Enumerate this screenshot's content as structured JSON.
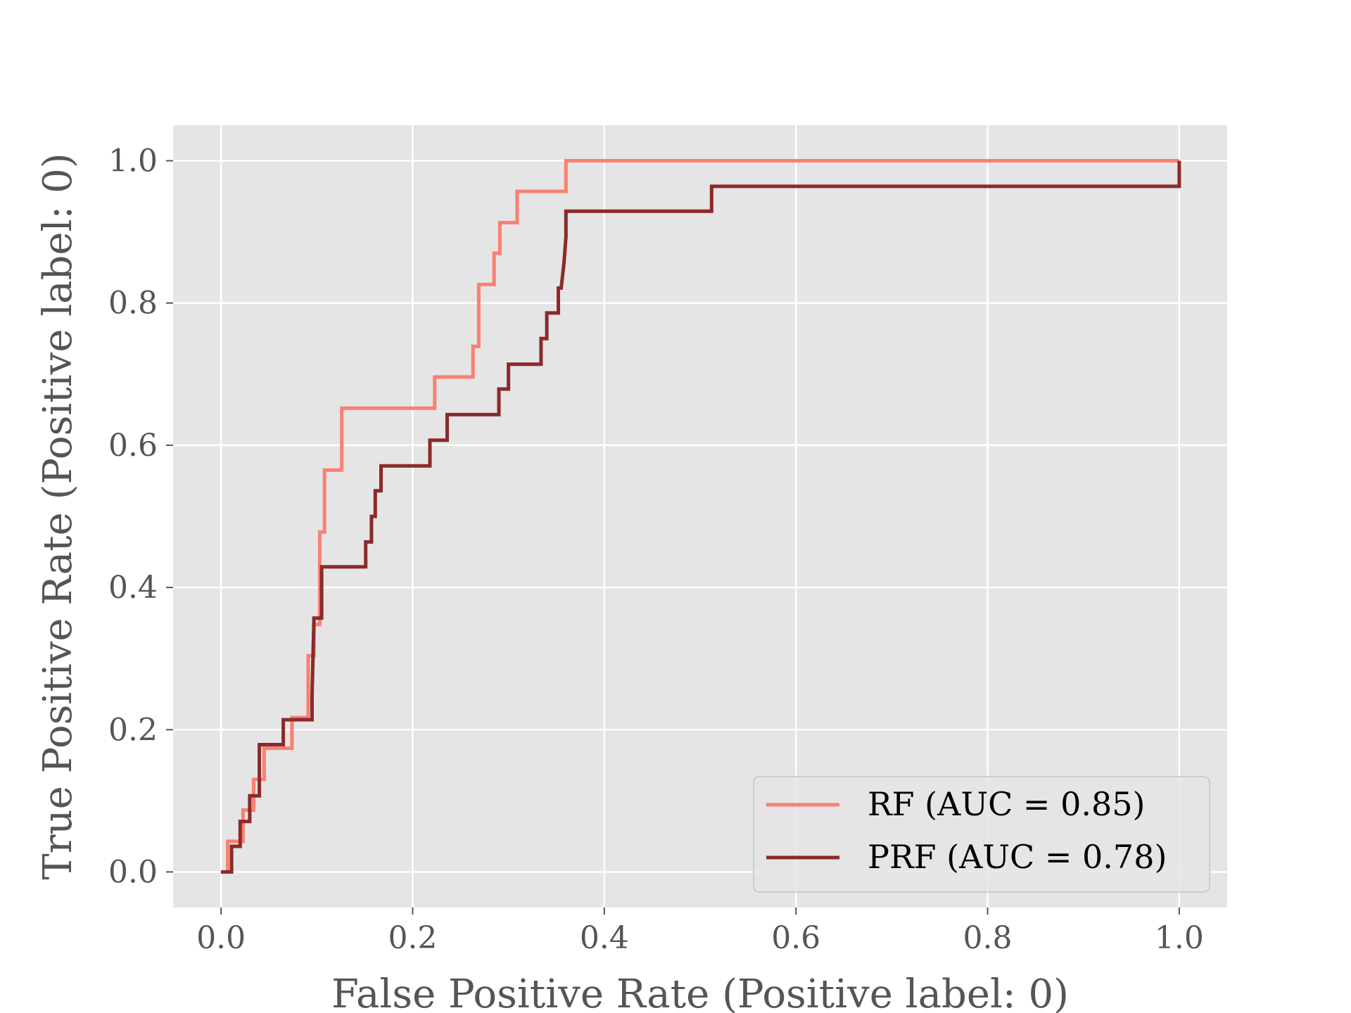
{
  "chart_data": {
    "type": "line",
    "title": "",
    "xlabel": "False Positive Rate (Positive label: 0)",
    "ylabel": "True Positive Rate (Positive label: 0)",
    "xlim": [
      -0.05,
      1.05
    ],
    "ylim": [
      -0.05,
      1.05
    ],
    "x_ticks": [
      0.0,
      0.2,
      0.4,
      0.6,
      0.8,
      1.0
    ],
    "x_tick_labels": [
      "0.0",
      "0.2",
      "0.4",
      "0.6",
      "0.8",
      "1.0"
    ],
    "y_ticks": [
      0.0,
      0.2,
      0.4,
      0.6,
      0.8,
      1.0
    ],
    "y_tick_labels": [
      "0.0",
      "0.2",
      "0.4",
      "0.6",
      "0.8",
      "1.0"
    ],
    "grid": true,
    "background": "#e5e5e5",
    "legend_position": "lower right",
    "series": [
      {
        "name": "RF (AUC = 0.85)",
        "color": "#fa8072",
        "x": [
          0.0,
          0.007,
          0.007,
          0.023,
          0.023,
          0.034,
          0.034,
          0.045,
          0.045,
          0.074,
          0.074,
          0.091,
          0.091,
          0.097,
          0.097,
          0.103,
          0.103,
          0.108,
          0.108,
          0.126,
          0.126,
          0.223,
          0.223,
          0.263,
          0.263,
          0.269,
          0.269,
          0.285,
          0.285,
          0.291,
          0.291,
          0.309,
          0.309,
          0.36,
          0.36,
          1.0,
          1.0
        ],
        "y": [
          0.0,
          0.0,
          0.043,
          0.043,
          0.087,
          0.087,
          0.13,
          0.13,
          0.174,
          0.174,
          0.217,
          0.217,
          0.304,
          0.304,
          0.348,
          0.348,
          0.478,
          0.478,
          0.565,
          0.565,
          0.652,
          0.652,
          0.696,
          0.696,
          0.739,
          0.739,
          0.826,
          0.826,
          0.87,
          0.87,
          0.913,
          0.913,
          0.957,
          0.957,
          1.0,
          1.0,
          1.0
        ]
      },
      {
        "name": "PRF (AUC = 0.78)",
        "color": "#8b2a2a",
        "x": [
          0.0,
          0.011,
          0.011,
          0.02,
          0.02,
          0.03,
          0.03,
          0.04,
          0.04,
          0.065,
          0.065,
          0.095,
          0.095,
          0.097,
          0.097,
          0.105,
          0.105,
          0.151,
          0.151,
          0.157,
          0.157,
          0.161,
          0.161,
          0.167,
          0.167,
          0.218,
          0.218,
          0.236,
          0.236,
          0.29,
          0.29,
          0.3,
          0.3,
          0.334,
          0.334,
          0.34,
          0.34,
          0.352,
          0.352,
          0.355,
          0.358,
          0.36,
          0.36,
          0.512,
          0.512,
          1.0,
          1.0
        ],
        "y": [
          0.0,
          0.0,
          0.036,
          0.036,
          0.071,
          0.071,
          0.107,
          0.107,
          0.179,
          0.179,
          0.214,
          0.214,
          0.25,
          0.357,
          0.357,
          0.357,
          0.429,
          0.429,
          0.464,
          0.464,
          0.5,
          0.5,
          0.536,
          0.536,
          0.571,
          0.571,
          0.607,
          0.607,
          0.643,
          0.643,
          0.679,
          0.679,
          0.714,
          0.714,
          0.75,
          0.75,
          0.786,
          0.786,
          0.821,
          0.821,
          0.857,
          0.893,
          0.929,
          0.929,
          0.964,
          0.964,
          1.0
        ]
      }
    ]
  }
}
